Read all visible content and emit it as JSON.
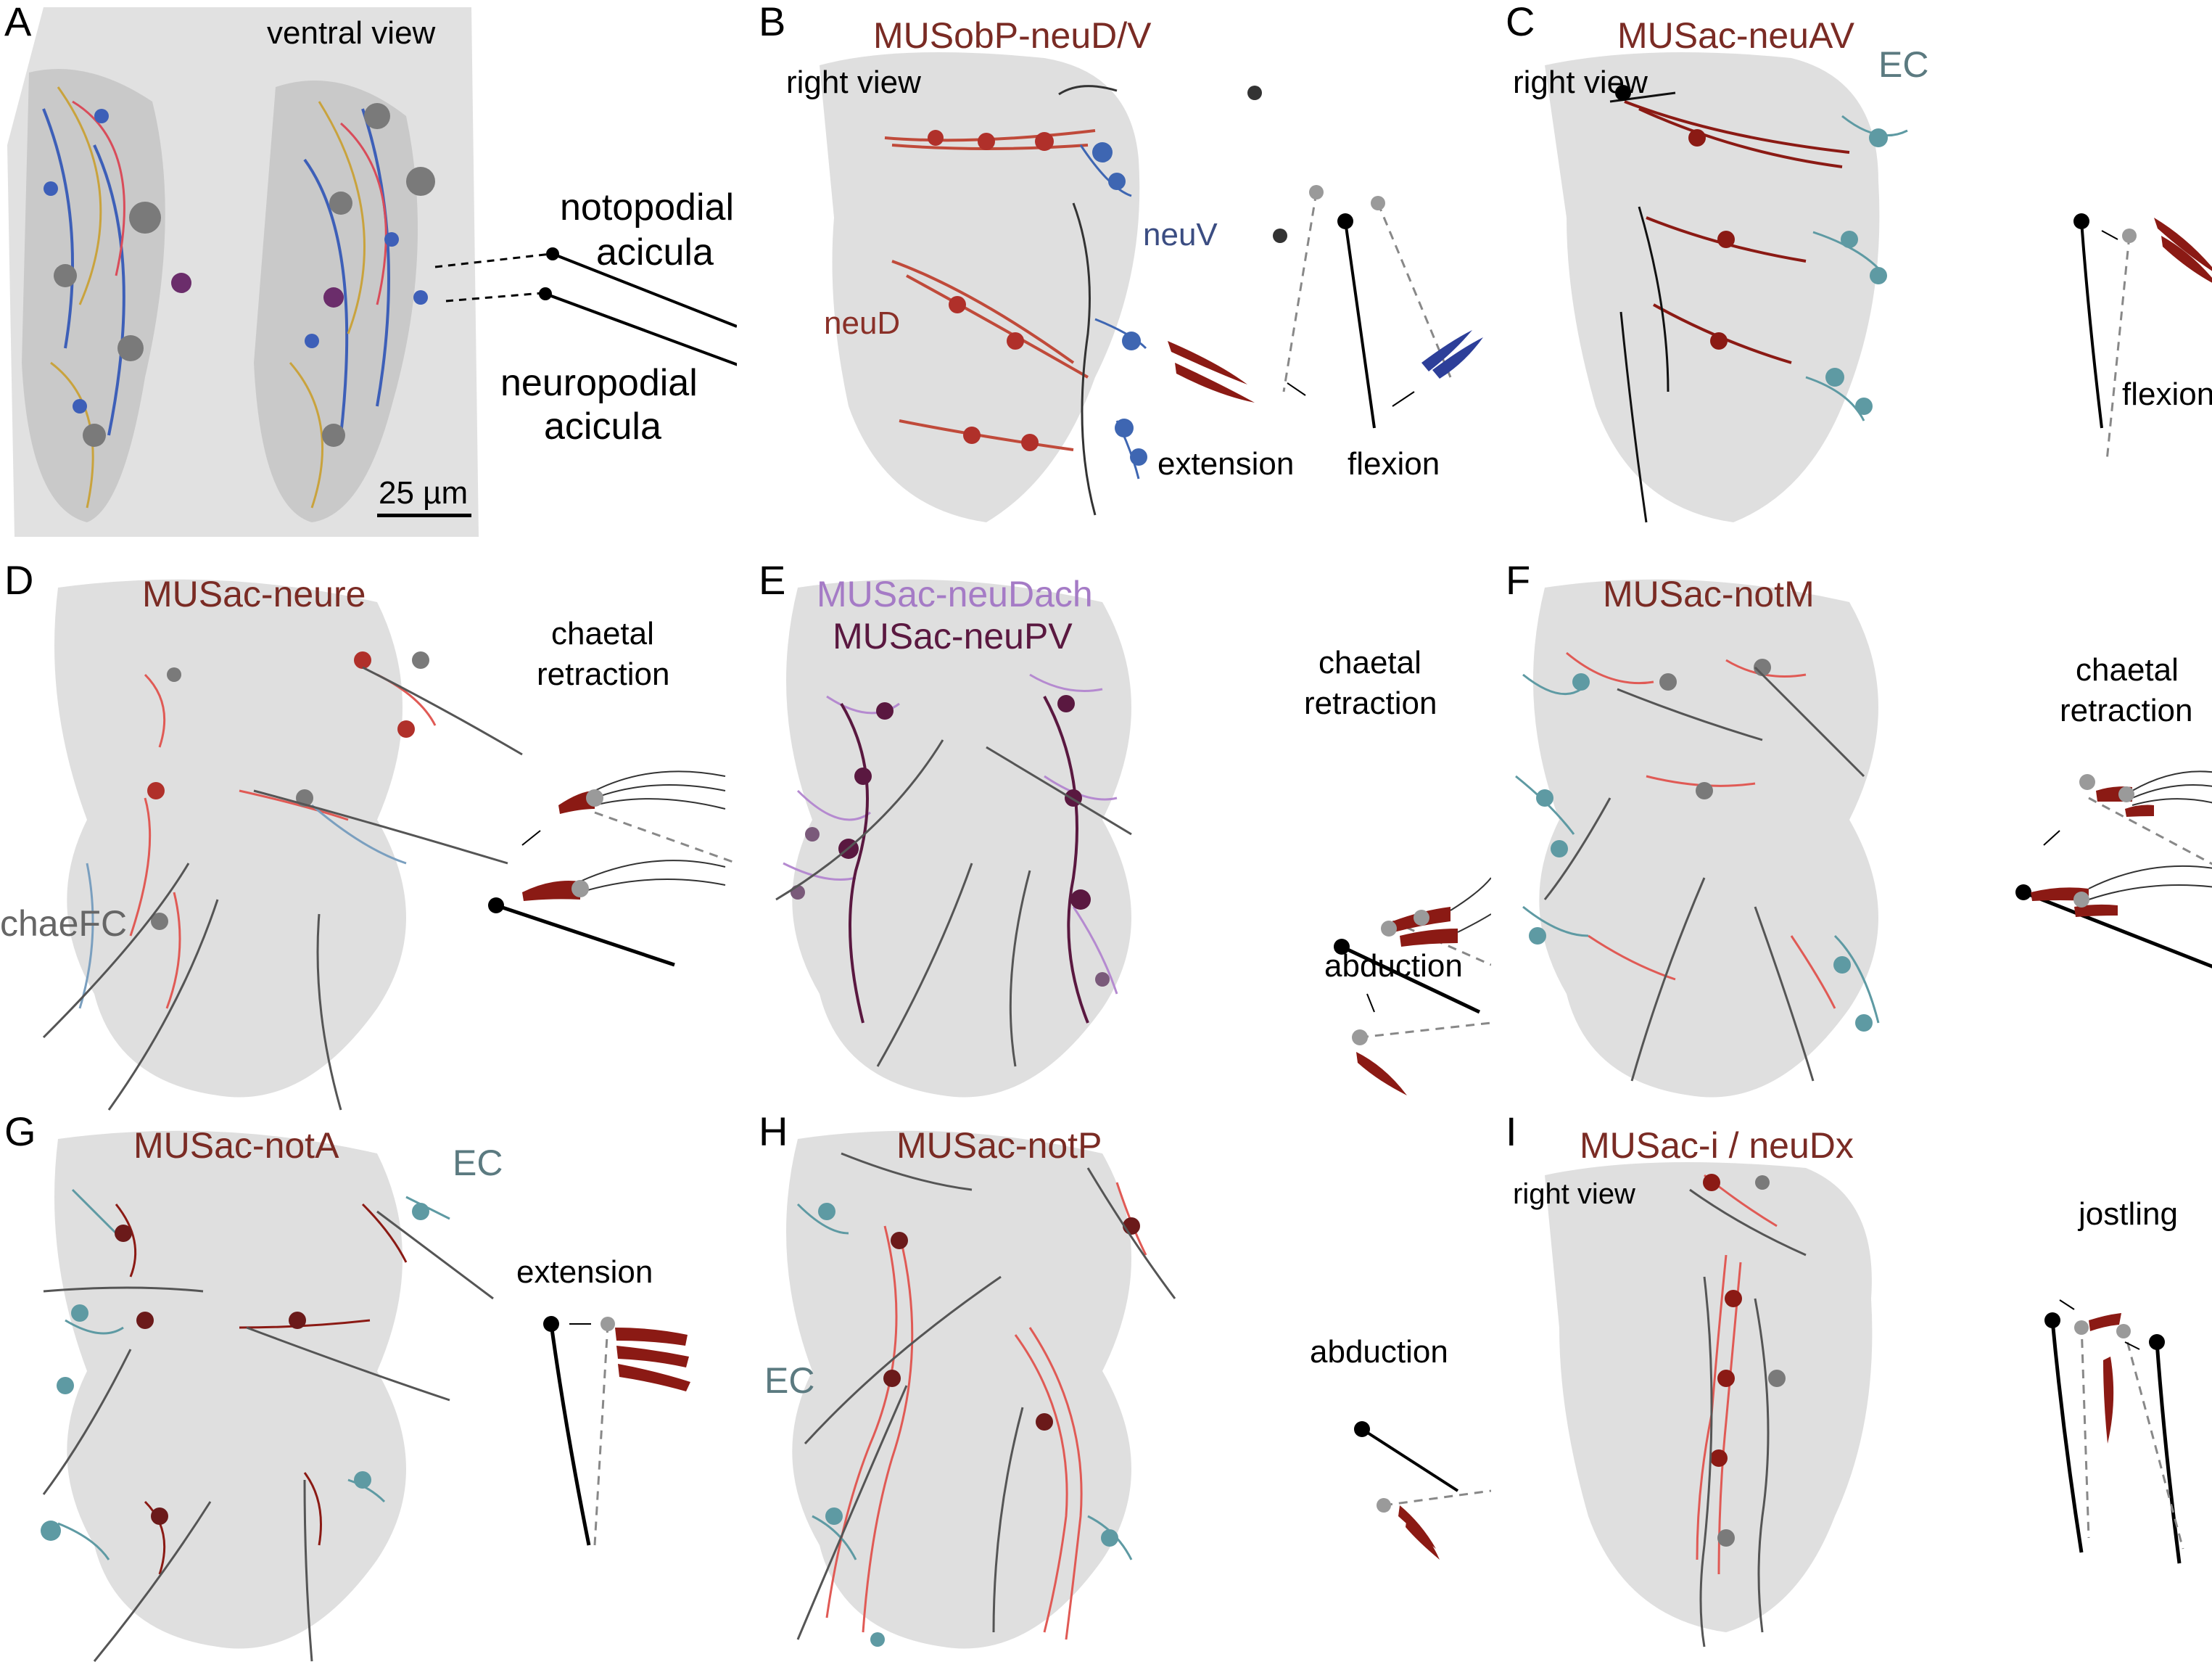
{
  "panels": {
    "A": {
      "letter": "A",
      "view": "ventral view",
      "noto_label_1": "notopodial",
      "noto_label_2": "acicula",
      "neuro_label_1": "neuropodial",
      "neuro_label_2": "acicula",
      "scale": "25 µm"
    },
    "B": {
      "letter": "B",
      "title": "MUSobP-neuD/V",
      "view": "right view",
      "neuV": "neuV",
      "neuD": "neuD",
      "extension": "extension",
      "flexion": "flexion"
    },
    "C": {
      "letter": "C",
      "title": "MUSac-neuAV",
      "view": "right view",
      "ec": "EC",
      "flexion": "flexion"
    },
    "D": {
      "letter": "D",
      "title": "MUSac-neure",
      "action_1": "chaetal",
      "action_2": "retraction",
      "chaeFC": "chaeFC"
    },
    "E": {
      "letter": "E",
      "title_1": "MUSac-neuDach",
      "title_2": "MUSac-neuPV",
      "action_1": "chaetal",
      "action_2": "retraction",
      "abduction": "abduction"
    },
    "F": {
      "letter": "F",
      "title": "MUSac-notM",
      "action_1": "chaetal",
      "action_2": "retraction"
    },
    "G": {
      "letter": "G",
      "title": "MUSac-notA",
      "ec": "EC",
      "extension": "extension"
    },
    "H": {
      "letter": "H",
      "title": "MUSac-notP",
      "ec": "EC",
      "abduction": "abduction"
    },
    "I": {
      "letter": "I",
      "title": "MUSac-i / neuDx",
      "view": "right view",
      "jostling": "jostling"
    }
  },
  "colors": {
    "muscle_red": "#8b1a14",
    "muscle_light_red": "#e05a55",
    "neuron_blue": "#2d3f99",
    "cell_teal": "#5e9aa3",
    "purple": "#5a1840",
    "lilac": "#b58ad0",
    "acicula_black": "#000000",
    "dot_grey": "#9a9a9a",
    "tissue_grey": "#d9d9d9"
  }
}
